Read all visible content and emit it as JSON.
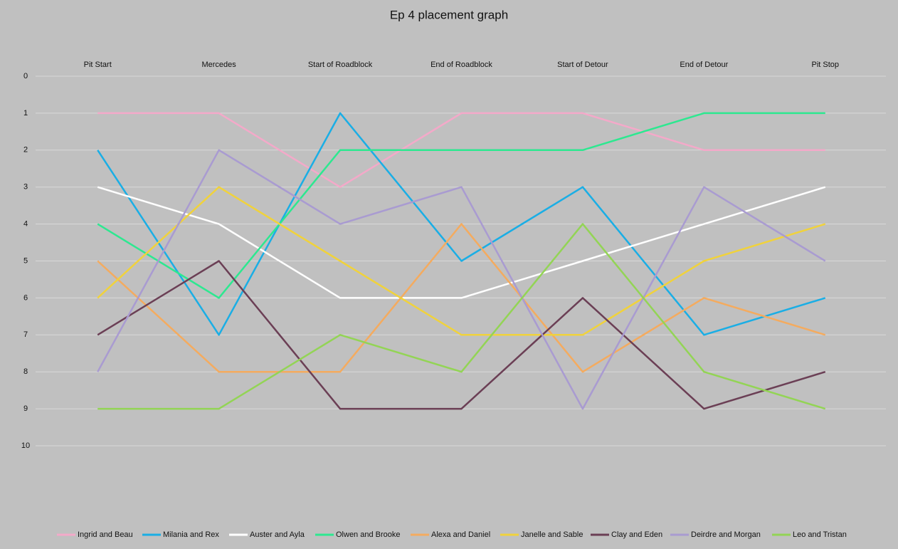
{
  "chart_data": {
    "type": "line",
    "title": "Ep 4 placement graph",
    "categories": [
      "Pit Start",
      "Mercedes",
      "Start of Roadblock",
      "End of Roadblock",
      "Start of Detour",
      "End of Detour",
      "Pit Stop"
    ],
    "ylim": [
      0,
      10
    ],
    "yticks": [
      0,
      1,
      2,
      3,
      4,
      5,
      6,
      7,
      8,
      9,
      10
    ],
    "y_inverted": true,
    "grid": true,
    "legend": "bottom",
    "series": [
      {
        "name": "Ingrid and Beau",
        "color": "#f4a9c9",
        "values": [
          1,
          1,
          3,
          1,
          1,
          2,
          2
        ]
      },
      {
        "name": "Milania and Rex",
        "color": "#1aaee5",
        "values": [
          2,
          7,
          1,
          5,
          3,
          7,
          6
        ]
      },
      {
        "name": "Auster and Ayla",
        "color": "#ffffff",
        "values": [
          3,
          4,
          6,
          6,
          5,
          4,
          3
        ]
      },
      {
        "name": "Olwen and Brooke",
        "color": "#2de890",
        "values": [
          4,
          6,
          2,
          2,
          2,
          1,
          1
        ]
      },
      {
        "name": "Alexa and Daniel",
        "color": "#f4ab5f",
        "values": [
          5,
          8,
          8,
          4,
          8,
          6,
          7
        ]
      },
      {
        "name": "Janelle and Sable",
        "color": "#f0d23c",
        "values": [
          6,
          3,
          5,
          7,
          7,
          5,
          4
        ]
      },
      {
        "name": "Clay and Eden",
        "color": "#6b3f55",
        "values": [
          7,
          5,
          9,
          9,
          6,
          9,
          8
        ]
      },
      {
        "name": "Deirdre and Morgan",
        "color": "#a99bd1",
        "values": [
          8,
          2,
          4,
          3,
          9,
          3,
          5
        ]
      },
      {
        "name": "Leo and Tristan",
        "color": "#93d455",
        "values": [
          9,
          9,
          7,
          8,
          4,
          8,
          9
        ]
      }
    ]
  }
}
